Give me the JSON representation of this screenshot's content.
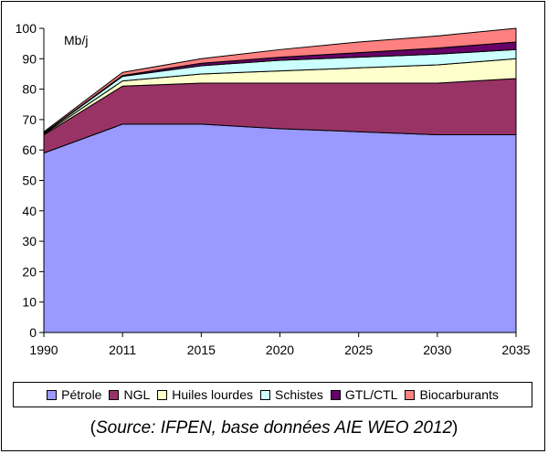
{
  "chart_data": {
    "type": "area",
    "stacked": true,
    "unit_label": "Mb/j",
    "x": [
      "1990",
      "2011",
      "2015",
      "2020",
      "2025",
      "2030",
      "2035"
    ],
    "ylim": [
      0,
      100
    ],
    "yticks": [
      0,
      10,
      20,
      30,
      40,
      50,
      60,
      70,
      80,
      90,
      100
    ],
    "grid": false,
    "legend_position": "bottom",
    "series": [
      {
        "name": "Pétrole",
        "color": "#9999ff",
        "values": [
          59.0,
          68.5,
          68.5,
          67.0,
          66.0,
          65.0,
          65.0
        ]
      },
      {
        "name": "NGL",
        "color": "#993366",
        "values": [
          6.0,
          12.5,
          13.5,
          15.0,
          16.0,
          17.0,
          18.5
        ]
      },
      {
        "name": "Huiles lourdes",
        "color": "#ffffcc",
        "values": [
          0.3,
          1.7,
          3.0,
          4.0,
          5.0,
          6.0,
          6.5
        ]
      },
      {
        "name": "Schistes",
        "color": "#ccffff",
        "values": [
          0.2,
          1.5,
          2.7,
          3.5,
          3.5,
          3.5,
          3.0
        ]
      },
      {
        "name": "GTL/CTL",
        "color": "#660066",
        "values": [
          0.1,
          0.3,
          0.8,
          1.0,
          1.5,
          2.0,
          2.5
        ]
      },
      {
        "name": "Biocarburants",
        "color": "#ff8080",
        "values": [
          0.4,
          1.0,
          1.5,
          2.5,
          3.5,
          4.0,
          4.5
        ]
      }
    ]
  },
  "source_note": {
    "open": "(",
    "text": "Source: IFPEN, base données AIE WEO 2012",
    "close": ")"
  }
}
